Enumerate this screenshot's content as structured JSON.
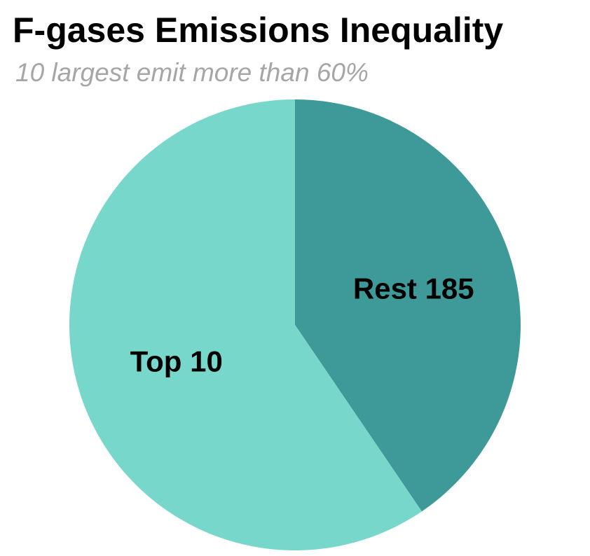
{
  "chart_data": {
    "type": "pie",
    "title": "F-gases Emissions Inequality",
    "subtitle": "10 largest emit more than 60%",
    "slices": [
      {
        "label": "Rest 185",
        "value": 40.5,
        "color": "#3e9a98"
      },
      {
        "label": "Top 10",
        "value": 59.5,
        "color": "#77d7cb"
      }
    ],
    "start_angle_deg": 0,
    "direction": "clockwise",
    "legend": "none"
  }
}
